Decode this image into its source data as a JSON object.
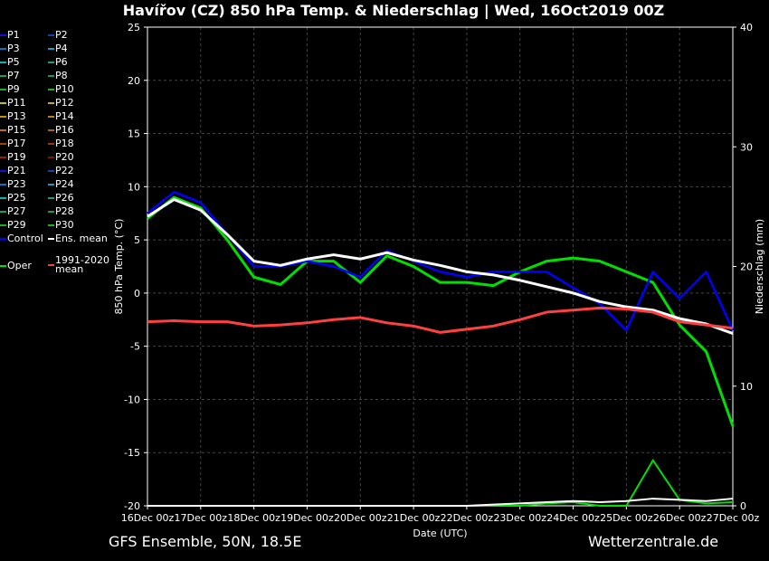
{
  "title": "Havířov  (CZ)  850 hPa Temp. & Niederschlag | Wed, 16Oct2019 00Z",
  "footer_left": "GFS Ensemble, 50N, 18.5E",
  "footer_right": "Wetterzentrale.de",
  "legend": [
    {
      "label": "P1",
      "color": "#1010d0"
    },
    {
      "label": "P2",
      "color": "#1040c0"
    },
    {
      "label": "P3",
      "color": "#1070c0"
    },
    {
      "label": "P4",
      "color": "#10a0c0"
    },
    {
      "label": "P5",
      "color": "#10b0b0"
    },
    {
      "label": "P6",
      "color": "#10a080"
    },
    {
      "label": "P7",
      "color": "#10a060"
    },
    {
      "label": "P8",
      "color": "#10a040"
    },
    {
      "label": "P9",
      "color": "#10b030"
    },
    {
      "label": "P10",
      "color": "#10c010"
    },
    {
      "label": "P11",
      "color": "#c0c010"
    },
    {
      "label": "P12",
      "color": "#c0b010"
    },
    {
      "label": "P13",
      "color": "#c09010"
    },
    {
      "label": "P14",
      "color": "#c08010"
    },
    {
      "label": "P15",
      "color": "#c07010"
    },
    {
      "label": "P16",
      "color": "#b06010"
    },
    {
      "label": "P17",
      "color": "#a04010"
    },
    {
      "label": "P18",
      "color": "#a03010"
    },
    {
      "label": "P19",
      "color": "#902010"
    },
    {
      "label": "P20",
      "color": "#801010"
    },
    {
      "label": "P21",
      "color": "#1010d0"
    },
    {
      "label": "P22",
      "color": "#1040c0"
    },
    {
      "label": "P23",
      "color": "#1070c0"
    },
    {
      "label": "P24",
      "color": "#10a0c0"
    },
    {
      "label": "P25",
      "color": "#10b0b0"
    },
    {
      "label": "P26",
      "color": "#10a080"
    },
    {
      "label": "P27",
      "color": "#10a060"
    },
    {
      "label": "P28",
      "color": "#10a040"
    },
    {
      "label": "P29",
      "color": "#10b030"
    },
    {
      "label": "P30",
      "color": "#10c010"
    },
    {
      "label": "Control",
      "color": "#0000ff"
    },
    {
      "label": "Ens. mean",
      "color": "#ffffff"
    },
    {
      "label": "Oper",
      "color": "#00e000"
    },
    {
      "label": "1991-2020 mean",
      "color": "#ff4040"
    }
  ],
  "chart_data": {
    "type": "line",
    "title": "Havířov  (CZ)  850 hPa Temp. & Niederschlag | Wed, 16Oct2019 00Z",
    "xlabel": "Date (UTC)",
    "ylabel": "850 hPa Temp. (°C)",
    "y2label": "Niederschlag (mm)",
    "x_ticks": [
      "16Dec 00z",
      "17Dec 00z",
      "18Dec 00z",
      "19Dec 00z",
      "20Dec 00z",
      "21Dec 00z",
      "22Dec 00z",
      "23Dec 00z",
      "24Dec 00z",
      "25Dec 00z",
      "26Dec 00z",
      "27Dec 00z"
    ],
    "y_ticks": [
      25,
      20,
      15,
      10,
      5,
      0,
      -5,
      -10,
      -15,
      -20
    ],
    "y2_ticks": [
      40,
      30,
      20,
      10,
      0
    ],
    "ylim": [
      -20,
      25
    ],
    "y2lim": [
      0,
      40
    ],
    "x_days": [
      0,
      0.5,
      1,
      1.5,
      2,
      2.5,
      3,
      3.5,
      4,
      4.5,
      5,
      5.5,
      6,
      6.5,
      7,
      7.5,
      8,
      8.5,
      9,
      9.5,
      10,
      10.5,
      11
    ],
    "grid": true,
    "series": [
      {
        "name": "Oper",
        "color": "#00e000",
        "width": 3,
        "values": [
          7,
          9,
          8,
          5,
          1.5,
          0.8,
          3,
          3,
          1,
          3.5,
          2.5,
          1,
          1,
          0.7,
          2,
          3,
          3.3,
          3,
          2,
          1,
          -3,
          -5.5,
          -12.5
        ]
      },
      {
        "name": "Control",
        "color": "#0000ff",
        "width": 2.5,
        "values": [
          7.5,
          9.5,
          8.5,
          5.5,
          2.5,
          2.5,
          3,
          2.5,
          1.5,
          4,
          3,
          2,
          1.5,
          2,
          2,
          2,
          0.5,
          -1,
          -3.5,
          2,
          -0.5,
          2,
          -3.5
        ]
      },
      {
        "name": "Ens. mean",
        "color": "#ffffff",
        "width": 3,
        "values": [
          7.2,
          8.8,
          7.8,
          5.5,
          3,
          2.6,
          3.2,
          3.6,
          3.2,
          3.8,
          3.1,
          2.6,
          2,
          1.7,
          1.2,
          0.6,
          0,
          -0.8,
          -1.3,
          -1.6,
          -2.4,
          -2.9,
          -3.8
        ]
      },
      {
        "name": "1991-2020 mean",
        "color": "#ff4040",
        "width": 3,
        "values": [
          -2.7,
          -2.6,
          -2.7,
          -2.7,
          -3.1,
          -3,
          -2.8,
          -2.5,
          -2.3,
          -2.8,
          -3.1,
          -3.7,
          -3.4,
          -3.1,
          -2.5,
          -1.8,
          -1.6,
          -1.4,
          -1.5,
          -1.8,
          -2.7,
          -3,
          -3.3
        ]
      }
    ],
    "precip_series": [
      {
        "name": "Oper precip",
        "color": "#00e000",
        "values": [
          0,
          0,
          0,
          0,
          0,
          0,
          0,
          0,
          0,
          0,
          0,
          0,
          0,
          0,
          0,
          0.2,
          0.3,
          0,
          0,
          3.8,
          0.5,
          0.2,
          0.3
        ]
      },
      {
        "name": "Ens. mean precip",
        "color": "#ffffff",
        "values": [
          0,
          0,
          0,
          0,
          0,
          0,
          0,
          0,
          0,
          0,
          0,
          0,
          0,
          0.1,
          0.2,
          0.3,
          0.4,
          0.3,
          0.4,
          0.6,
          0.5,
          0.4,
          0.6
        ]
      }
    ]
  }
}
